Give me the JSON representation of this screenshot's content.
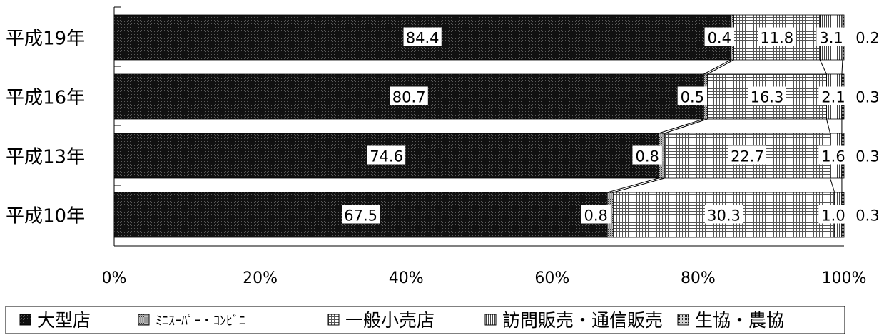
{
  "chart_data": {
    "type": "bar",
    "orientation": "horizontal",
    "stacked": "percent",
    "categories": [
      "平成19年",
      "平成16年",
      "平成13年",
      "平成10年"
    ],
    "series": [
      {
        "name": "大型店",
        "values": [
          84.4,
          80.7,
          74.6,
          67.5
        ],
        "color": "#1a1a1a",
        "pattern": "dark-dots"
      },
      {
        "name": "ﾐﾆｽｰﾊﾟｰ・ｺﾝﾋﾞﾆ",
        "values": [
          0.4,
          0.5,
          0.8,
          0.8
        ],
        "color": "#9a9a9a",
        "pattern": "medium-dots"
      },
      {
        "name": "一般小売店",
        "values": [
          11.8,
          16.3,
          22.7,
          30.3
        ],
        "color": "#cccccc",
        "pattern": "grid"
      },
      {
        "name": "訪問販売・通信販売",
        "values": [
          3.1,
          2.1,
          1.6,
          1.0
        ],
        "color": "#d8d8d8",
        "pattern": "vertical-lines"
      },
      {
        "name": "生協・農協",
        "values": [
          0.2,
          0.3,
          0.3,
          0.3
        ],
        "color": "#8c8c8c",
        "pattern": "dense-dots"
      }
    ],
    "value_labels": [
      [
        "84.4",
        "0.4",
        "11.8",
        "3.1",
        "0.2"
      ],
      [
        "80.7",
        "0.5",
        "16.3",
        "2.1",
        "0.3"
      ],
      [
        "74.6",
        "0.8",
        "22.7",
        "1.6",
        "0.3"
      ],
      [
        "67.5",
        "0.8",
        "30.3",
        "1.0",
        "0.3"
      ]
    ],
    "x_ticks": [
      "0%",
      "20%",
      "40%",
      "60%",
      "80%",
      "100%"
    ],
    "xlim": [
      0,
      100
    ],
    "grid": false,
    "series_lines": true,
    "legend_position": "bottom"
  }
}
